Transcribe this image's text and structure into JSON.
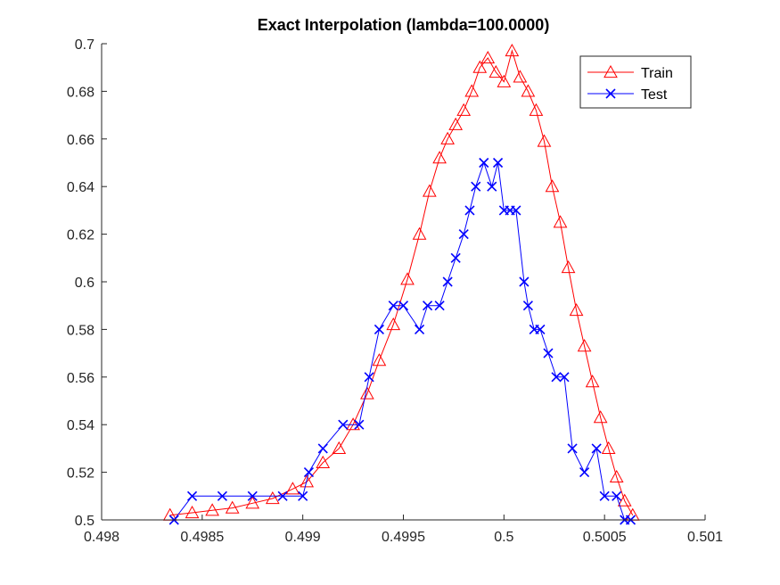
{
  "chart_data": {
    "type": "line",
    "title": "Exact Interpolation (lambda=100.0000)",
    "xlabel": "",
    "ylabel": "",
    "xlim": [
      0.498,
      0.501
    ],
    "ylim": [
      0.5,
      0.7
    ],
    "xticks": [
      "0.498",
      "0.4985",
      "0.499",
      "0.4995",
      "0.5",
      "0.5005",
      "0.501"
    ],
    "yticks": [
      "0.5",
      "0.52",
      "0.54",
      "0.56",
      "0.58",
      "0.6",
      "0.62",
      "0.64",
      "0.66",
      "0.68",
      "0.7"
    ],
    "legend_position": "top-right",
    "grid": false,
    "series": [
      {
        "name": "Train",
        "color": "#ff0000",
        "marker": "triangle",
        "x": [
          0.49834,
          0.49845,
          0.49855,
          0.49865,
          0.49875,
          0.49885,
          0.49895,
          0.49902,
          0.4991,
          0.49918,
          0.49925,
          0.49932,
          0.49938,
          0.49945,
          0.49952,
          0.49958,
          0.49963,
          0.49968,
          0.49972,
          0.49976,
          0.4998,
          0.49984,
          0.49988,
          0.49992,
          0.49996,
          0.5,
          0.50004,
          0.50008,
          0.50012,
          0.50016,
          0.5002,
          0.50024,
          0.50028,
          0.50032,
          0.50036,
          0.5004,
          0.50044,
          0.50048,
          0.50052,
          0.50056,
          0.5006,
          0.50064
        ],
        "y": [
          0.502,
          0.503,
          0.504,
          0.505,
          0.507,
          0.509,
          0.513,
          0.516,
          0.524,
          0.53,
          0.54,
          0.553,
          0.567,
          0.582,
          0.601,
          0.62,
          0.638,
          0.652,
          0.66,
          0.666,
          0.672,
          0.68,
          0.69,
          0.694,
          0.688,
          0.684,
          0.697,
          0.686,
          0.68,
          0.672,
          0.659,
          0.64,
          0.625,
          0.606,
          0.588,
          0.573,
          0.558,
          0.543,
          0.53,
          0.518,
          0.508,
          0.502
        ]
      },
      {
        "name": "Test",
        "color": "#0000ff",
        "marker": "x",
        "x": [
          0.49836,
          0.49845,
          0.4986,
          0.49875,
          0.4989,
          0.499,
          0.49903,
          0.4991,
          0.4992,
          0.49928,
          0.49933,
          0.49938,
          0.49945,
          0.4995,
          0.49958,
          0.49962,
          0.49968,
          0.49972,
          0.49976,
          0.4998,
          0.49983,
          0.49986,
          0.4999,
          0.49994,
          0.49997,
          0.5,
          0.50003,
          0.50006,
          0.5001,
          0.50012,
          0.50015,
          0.50018,
          0.50022,
          0.50026,
          0.5003,
          0.50034,
          0.5004,
          0.50046,
          0.5005,
          0.50056,
          0.5006,
          0.50063
        ],
        "y": [
          0.5,
          0.51,
          0.51,
          0.51,
          0.51,
          0.51,
          0.52,
          0.53,
          0.54,
          0.54,
          0.56,
          0.58,
          0.59,
          0.59,
          0.58,
          0.59,
          0.59,
          0.6,
          0.61,
          0.62,
          0.63,
          0.64,
          0.65,
          0.64,
          0.65,
          0.63,
          0.63,
          0.63,
          0.6,
          0.59,
          0.58,
          0.58,
          0.57,
          0.56,
          0.56,
          0.53,
          0.52,
          0.53,
          0.51,
          0.51,
          0.5,
          0.5
        ]
      }
    ]
  }
}
